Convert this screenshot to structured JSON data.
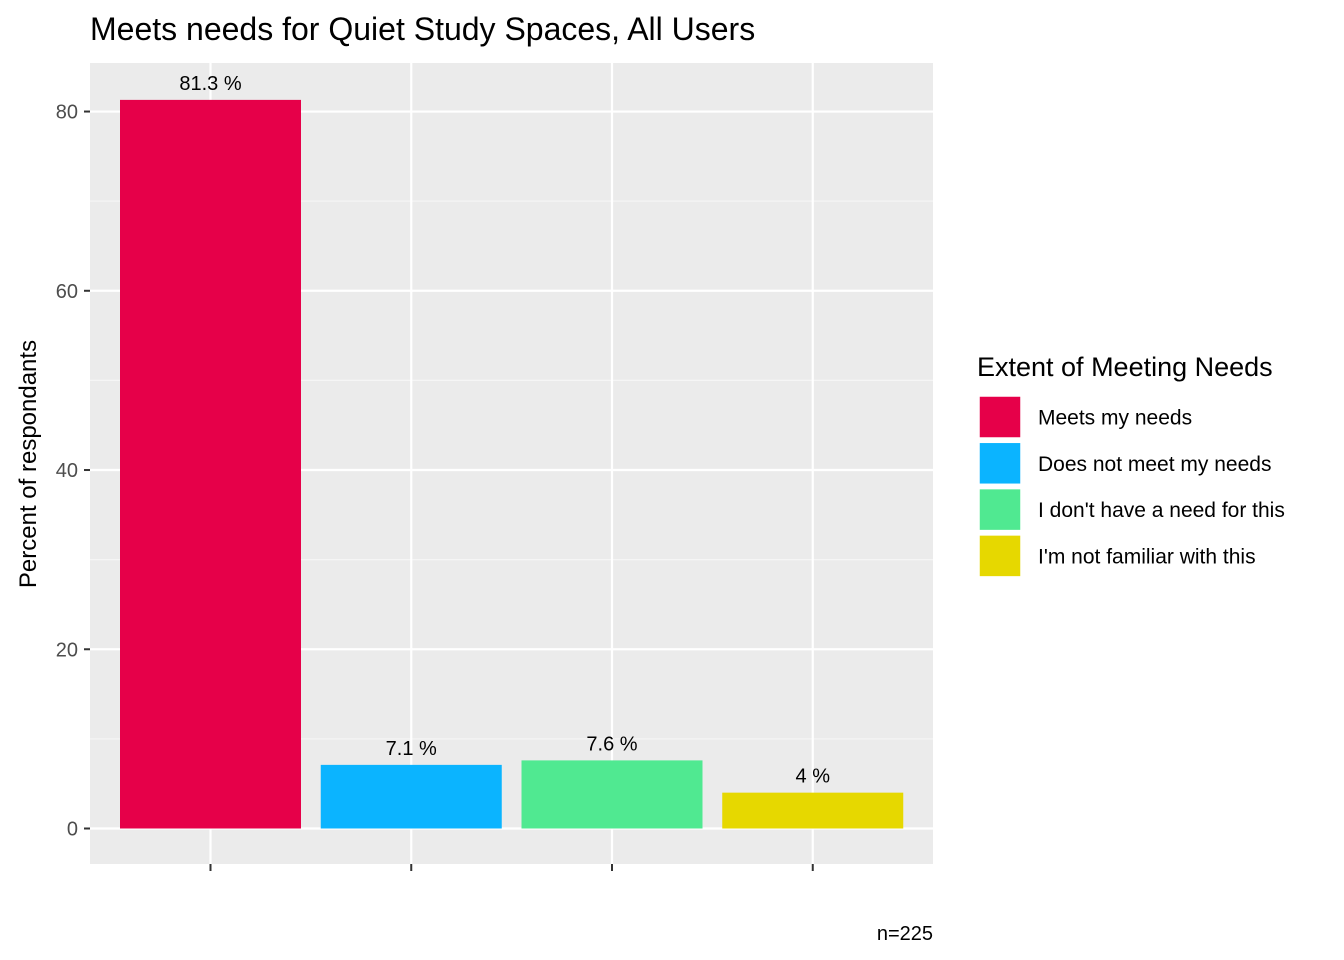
{
  "chart_data": {
    "type": "bar",
    "title": "Meets needs for Quiet Study Spaces, All Users",
    "xlabel": "",
    "ylabel": "Percent of respondants",
    "caption": "n=225",
    "ylim": [
      0,
      85
    ],
    "y_ticks": [
      0,
      20,
      40,
      60,
      80
    ],
    "y_tick_labels": [
      "0",
      "20",
      "40",
      "60",
      "80"
    ],
    "grid": true,
    "legend": {
      "title": "Extent of Meeting Needs",
      "placement": "right"
    },
    "categories": [
      "Meets my needs",
      "Does not meet my needs",
      "I don't have a need for this",
      "I'm not familiar with this"
    ],
    "values": [
      81.3,
      7.1,
      7.6,
      4
    ],
    "data_labels": [
      "81.3 %",
      "7.1 %",
      "7.6 %",
      "4 %"
    ],
    "colors": [
      "#e60049",
      "#0bb4ff",
      "#50e991",
      "#e6d800"
    ]
  },
  "theme": {
    "panel_background": "#ebebeb",
    "grid_major": "#ffffff",
    "grid_minor": "#f5f5f5",
    "tick_color": "#333333"
  }
}
